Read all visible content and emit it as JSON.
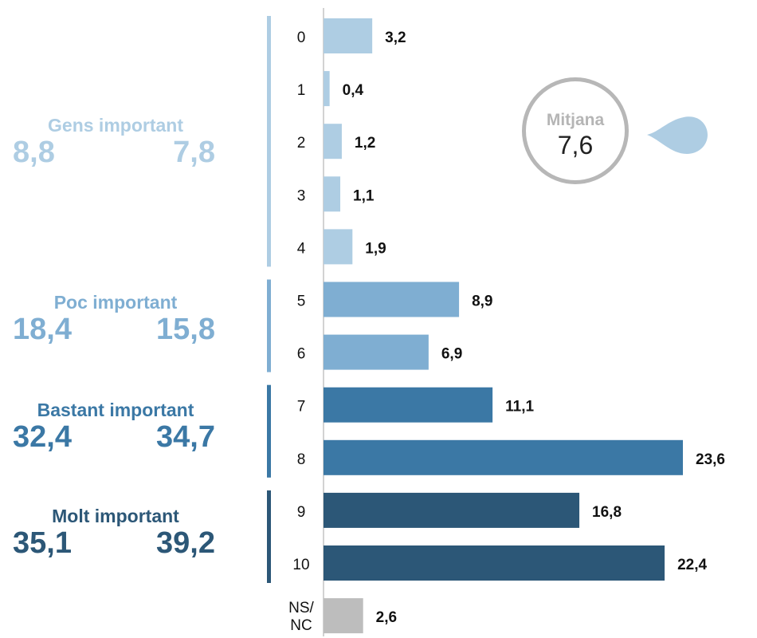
{
  "chart_data": {
    "type": "bar",
    "orientation": "horizontal",
    "categories": [
      "0",
      "1",
      "2",
      "3",
      "4",
      "5",
      "6",
      "7",
      "8",
      "9",
      "10",
      "NS/ NC"
    ],
    "values": [
      3.2,
      0.4,
      1.2,
      1.1,
      1.9,
      8.9,
      6.9,
      11.1,
      23.6,
      16.8,
      22.4,
      2.6
    ],
    "value_labels": [
      "3,2",
      "0,4",
      "1,2",
      "1,1",
      "1,9",
      "8,9",
      "6,9",
      "11,1",
      "23,6",
      "16,8",
      "22,4",
      "2,6"
    ],
    "xlim": [
      0,
      23.6
    ],
    "grid": false,
    "legend": "none",
    "group_colors": [
      "#aecde3",
      "#7faed2",
      "#3b78a5",
      "#2c5777",
      "#bdbdbd"
    ],
    "groups": [
      {
        "label": "Gens important",
        "values": [
          "8,8",
          "7,8"
        ],
        "color": "#aecde3"
      },
      {
        "label": "Poc important",
        "values": [
          "18,4",
          "15,8"
        ],
        "color": "#7faed2"
      },
      {
        "label": "Bastant important",
        "values": [
          "32,4",
          "34,7"
        ],
        "color": "#3b78a5"
      },
      {
        "label": "Molt important",
        "values": [
          "35,1",
          "39,2"
        ],
        "color": "#2c5777"
      }
    ],
    "annotation": {
      "label": "Mitjana",
      "value": "7,6",
      "accent": "#aecde3"
    }
  }
}
